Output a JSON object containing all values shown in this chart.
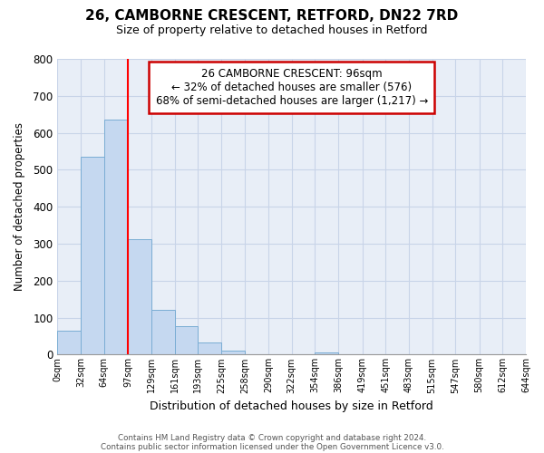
{
  "title": "26, CAMBORNE CRESCENT, RETFORD, DN22 7RD",
  "subtitle": "Size of property relative to detached houses in Retford",
  "xlabel": "Distribution of detached houses by size in Retford",
  "ylabel": "Number of detached properties",
  "bin_edges": [
    0,
    32,
    64,
    97,
    129,
    161,
    193,
    225,
    258,
    290,
    322,
    354,
    386,
    419,
    451,
    483,
    515,
    547,
    580,
    612,
    644
  ],
  "counts": [
    65,
    535,
    635,
    313,
    122,
    76,
    32,
    11,
    0,
    0,
    0,
    5,
    0,
    0,
    0,
    0,
    0,
    0,
    0,
    0
  ],
  "bar_color": "#c5d8f0",
  "bar_edge_color": "#7aadd4",
  "red_line_x": 97,
  "ylim": [
    0,
    800
  ],
  "yticks": [
    0,
    100,
    200,
    300,
    400,
    500,
    600,
    700,
    800
  ],
  "xtick_labels": [
    "0sqm",
    "32sqm",
    "64sqm",
    "97sqm",
    "129sqm",
    "161sqm",
    "193sqm",
    "225sqm",
    "258sqm",
    "290sqm",
    "322sqm",
    "354sqm",
    "386sqm",
    "419sqm",
    "451sqm",
    "483sqm",
    "515sqm",
    "547sqm",
    "580sqm",
    "612sqm",
    "644sqm"
  ],
  "annotation_text": "26 CAMBORNE CRESCENT: 96sqm\n← 32% of detached houses are smaller (576)\n68% of semi-detached houses are larger (1,217) →",
  "annotation_box_color": "#ffffff",
  "annotation_box_edgecolor": "#cc0000",
  "footer1": "Contains HM Land Registry data © Crown copyright and database right 2024.",
  "footer2": "Contains public sector information licensed under the Open Government Licence v3.0.",
  "plot_bg_color": "#e8eef7",
  "fig_bg_color": "#ffffff",
  "grid_color": "#c8d4e8"
}
